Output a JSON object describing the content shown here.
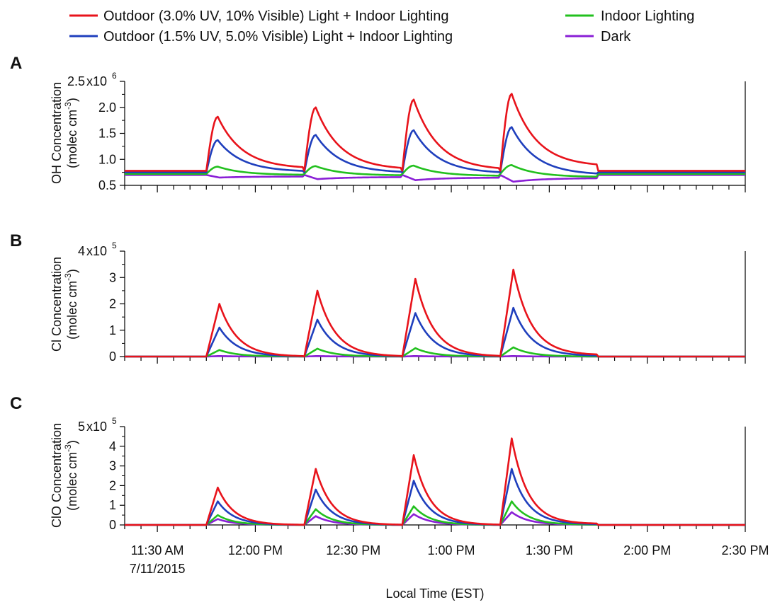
{
  "chart_data": [
    {
      "type": "line",
      "panel": "A",
      "ylabel": "OH Concentration",
      "yunit_text": "(molec cm",
      "yunit_exp": "-3",
      "yunit_close": ")",
      "ylim": [
        0.5,
        2.5
      ],
      "y_multiplier": "x10",
      "y_multiplier_exp": "6",
      "yticks": [
        0.5,
        1.0,
        1.5,
        2.0,
        2.5
      ],
      "ytick_labels": [
        "0.5",
        "1.0",
        "1.5",
        "2.0",
        "2.5"
      ],
      "baseline": {
        "outdoor_3uv": 0.78,
        "outdoor_1_5uv": 0.75,
        "indoor": 0.72,
        "dark": 0.7
      },
      "peaks": {
        "outdoor_3uv": [
          1.82,
          2.0,
          2.15,
          2.26
        ],
        "outdoor_1_5uv": [
          1.37,
          1.47,
          1.56,
          1.62
        ],
        "indoor": [
          0.86,
          0.87,
          0.88,
          0.89
        ],
        "dark": [
          0.65,
          0.62,
          0.6,
          0.57
        ]
      },
      "series_end": {
        "outdoor_3uv": [
          0.82,
          0.8,
          0.79,
          0.86
        ],
        "outdoor_1_5uv": [
          0.76,
          0.74,
          0.73,
          0.7
        ],
        "indoor": [
          0.7,
          0.69,
          0.68,
          0.66
        ],
        "dark": [
          0.67,
          0.66,
          0.65,
          0.64
        ]
      }
    },
    {
      "type": "line",
      "panel": "B",
      "ylabel": "Cl Concentration",
      "yunit_text": "(molec cm",
      "yunit_exp": "-3",
      "yunit_close": ")",
      "ylim": [
        0,
        4
      ],
      "y_multiplier": "x10",
      "y_multiplier_exp": "5",
      "yticks": [
        0,
        1,
        2,
        3,
        4
      ],
      "ytick_labels": [
        "0",
        "1",
        "2",
        "3",
        "4"
      ],
      "baseline": {
        "outdoor_3uv": 0,
        "outdoor_1_5uv": 0,
        "indoor": 0,
        "dark": 0
      },
      "peaks": {
        "outdoor_3uv": [
          2.0,
          2.5,
          2.95,
          3.3
        ],
        "outdoor_1_5uv": [
          1.1,
          1.4,
          1.65,
          1.85
        ],
        "indoor": [
          0.25,
          0.3,
          0.32,
          0.35
        ],
        "dark": [
          0.02,
          0.02,
          0.02,
          0.02
        ]
      },
      "series_end": {
        "outdoor_3uv": [
          0,
          0,
          0,
          0.05
        ],
        "outdoor_1_5uv": [
          0,
          0,
          0,
          0.02
        ],
        "indoor": [
          0,
          0,
          0,
          0
        ],
        "dark": [
          0,
          0,
          0,
          0
        ]
      }
    },
    {
      "type": "line",
      "panel": "C",
      "ylabel": "ClO Concentration",
      "yunit_text": "(molec cm",
      "yunit_exp": "-3",
      "yunit_close": ")",
      "ylim": [
        0,
        5
      ],
      "y_multiplier": "x10",
      "y_multiplier_exp": "5",
      "yticks": [
        0,
        1,
        2,
        3,
        4,
        5
      ],
      "ytick_labels": [
        "0",
        "1",
        "2",
        "3",
        "4",
        "5"
      ],
      "baseline": {
        "outdoor_3uv": 0,
        "outdoor_1_5uv": 0,
        "indoor": 0,
        "dark": 0
      },
      "peaks": {
        "outdoor_3uv": [
          1.9,
          2.85,
          3.55,
          4.4
        ],
        "outdoor_1_5uv": [
          1.2,
          1.8,
          2.25,
          2.85
        ],
        "indoor": [
          0.5,
          0.8,
          0.95,
          1.2
        ],
        "dark": [
          0.3,
          0.45,
          0.55,
          0.65
        ]
      },
      "series_end": {
        "outdoor_3uv": [
          0,
          0,
          0,
          0.05
        ],
        "outdoor_1_5uv": [
          0,
          0,
          0,
          0.03
        ],
        "indoor": [
          0,
          0,
          0,
          0.01
        ],
        "dark": [
          0,
          0,
          0,
          0.01
        ]
      }
    }
  ],
  "shared": {
    "x_start_min": 680,
    "x_end_min": 870,
    "xticks_min": [
      690,
      720,
      750,
      780,
      810,
      840,
      870
    ],
    "xtick_labels": [
      "11:30 AM",
      "12:00 PM",
      "12:30 PM",
      "1:00 PM",
      "1:30 PM",
      "2:00 PM",
      "2:30 PM"
    ],
    "xtick_sublabel": "7/11/2015",
    "minor_tick_step_min": 5,
    "xlabel": "Local Time (EST)",
    "light_on_min": [
      705,
      735,
      765,
      795
    ],
    "light_off_min": [
      735,
      765,
      795,
      825
    ],
    "series": [
      {
        "key": "outdoor_3uv",
        "name": "Outdoor (3.0% UV, 10% Visible) Light + Indoor Lighting",
        "color": "#e8131b"
      },
      {
        "key": "outdoor_1_5uv",
        "name": "Outdoor (1.5% UV, 5.0% Visible) Light + Indoor Lighting",
        "color": "#1f3fbd"
      },
      {
        "key": "indoor",
        "name": "Indoor Lighting",
        "color": "#22c01e"
      },
      {
        "key": "dark",
        "name": "Dark",
        "color": "#8a1fd6"
      }
    ]
  }
}
